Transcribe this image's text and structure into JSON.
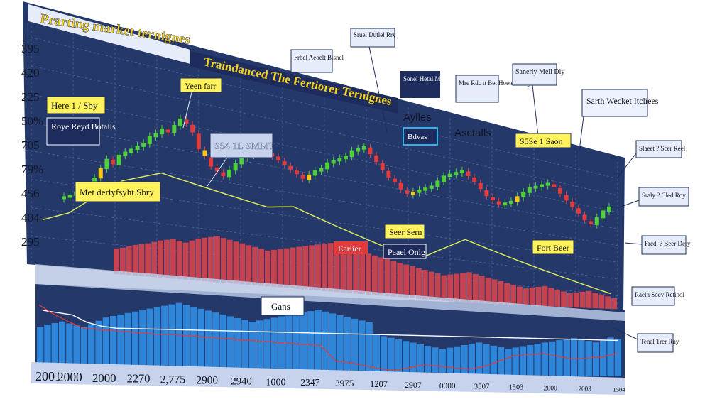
{
  "colors": {
    "panel_bg": "#25386a",
    "panel_bg_light": "#2c4482",
    "grid": "#5b74b0",
    "candle_up": "#4fcf3a",
    "candle_down": "#e23b3b",
    "candle_highlight": "#f5c518",
    "volume_red": "#d2434f",
    "volume_blue": "#2f86d9",
    "trend_line": "#d8e65a",
    "callout_yellow": "#fff25a",
    "callout_dark": "#1d2c5c",
    "callout_white": "#eef2ff",
    "text_dark": "#101522"
  },
  "chart_data": {
    "type": "bar",
    "title": "Prarting market ternignes",
    "subtitle": "Traindanced The Fertiorer Ternignes",
    "y_tick_labels": [
      "395",
      "420",
      "225",
      "50%",
      "705",
      "79%",
      "456",
      "404",
      "295"
    ],
    "x_tick_labels": [
      "2001",
      "2000",
      "2000",
      "2270",
      "2,775",
      "2900",
      "2940",
      "1000",
      "2347",
      "3975",
      "1207",
      "2907",
      "0000",
      "3507",
      "1503",
      "2000",
      "2003",
      "1504"
    ],
    "candle_closes_pct": [
      24,
      25,
      27,
      26,
      30,
      35,
      40,
      45,
      43,
      48,
      50,
      52,
      54,
      56,
      60,
      62,
      65,
      64,
      68,
      72,
      70,
      66,
      58,
      55,
      50,
      48,
      46,
      50,
      54,
      58,
      60,
      62,
      64,
      63,
      62,
      60,
      58,
      56,
      54,
      52,
      55,
      58,
      60,
      64,
      66,
      68,
      70,
      74,
      76,
      78,
      74,
      70,
      66,
      62,
      60,
      56,
      54,
      56,
      58,
      60,
      62,
      66,
      70,
      72,
      74,
      76,
      73,
      70,
      66,
      62,
      60,
      58,
      60,
      62,
      66,
      70,
      74,
      76,
      78,
      80,
      78,
      74,
      70,
      66,
      62,
      58,
      56,
      62,
      68,
      72
    ],
    "volume_red_pct": [
      40,
      42,
      45,
      48,
      50,
      52,
      55,
      58,
      60,
      62,
      60,
      58,
      62,
      66,
      68,
      70,
      72,
      70,
      68,
      66,
      64,
      62,
      60,
      58,
      56,
      58,
      60,
      62,
      64,
      66,
      68,
      70,
      72,
      74,
      76,
      74,
      72,
      70,
      68,
      66,
      64,
      62,
      60,
      58,
      56,
      54,
      52,
      50,
      48,
      46,
      44,
      42,
      40,
      42,
      44,
      46,
      48,
      46,
      44,
      42,
      40,
      38,
      36,
      34,
      32,
      30,
      32,
      34,
      36,
      34,
      32,
      30,
      28,
      30,
      32,
      34,
      32,
      30,
      28,
      26
    ],
    "volume_blue_pct": [
      55,
      58,
      60,
      62,
      60,
      58,
      56,
      60,
      64,
      68,
      70,
      72,
      74,
      76,
      78,
      80,
      82,
      84,
      86,
      88,
      86,
      84,
      82,
      80,
      78,
      76,
      74,
      72,
      70,
      68,
      70,
      72,
      74,
      76,
      78,
      80,
      82,
      84,
      86,
      84,
      82,
      80,
      78,
      76,
      74,
      72,
      56,
      54,
      52,
      50,
      48,
      46,
      44,
      42,
      40,
      38,
      40,
      42,
      44,
      46,
      48,
      46,
      44,
      42,
      40,
      42,
      44,
      46,
      48,
      50,
      52,
      54,
      56,
      58,
      56,
      54,
      52,
      56,
      60,
      58
    ],
    "trend_line_pct": [
      18,
      20,
      22,
      26,
      30,
      34,
      38,
      40,
      42,
      44,
      43,
      42,
      41,
      40,
      39,
      38,
      37,
      36,
      37,
      38,
      36,
      34,
      32,
      30,
      28,
      26,
      24,
      22,
      20,
      22,
      26,
      30,
      34,
      32,
      30,
      28,
      26,
      24,
      22,
      20,
      18,
      16,
      14,
      12
    ],
    "blue_trend_pct": [
      74,
      72,
      70,
      62,
      58,
      56,
      56,
      56,
      56,
      56,
      56,
      56,
      56,
      56,
      56,
      56,
      56,
      56,
      56,
      56,
      56,
      56,
      56,
      56,
      56,
      56,
      56,
      56,
      56,
      56,
      56,
      56,
      56,
      56,
      56,
      56,
      56,
      56,
      56,
      56
    ],
    "red_trend_pct": [
      80,
      70,
      62,
      55,
      54,
      53,
      52,
      51,
      50,
      50,
      49,
      48,
      47,
      46,
      45,
      44,
      43,
      42,
      41,
      40,
      20,
      18,
      14,
      10,
      8,
      12,
      16,
      14,
      12,
      10,
      14,
      22,
      30,
      32,
      34,
      30,
      26,
      28,
      30,
      36
    ]
  },
  "callouts": {
    "yearbar": "Yeen farr",
    "hero": "Here 1 / Sby",
    "roye": "Roye Reyd Botalls",
    "price": "S54 1L SMMT",
    "met": "Met derlyfsyht Sbry",
    "traindanced": "Traindanced The Fertiorer Ternignes",
    "small1": "Sruel Dutlel Rry",
    "small2": "Frbel Aeoelt Bisnel",
    "small3": "Sonel Hetal Mal tes Raol eom",
    "small4": "Mre Rdc tt Bet Hoetel Rdhy",
    "small5": "Sanerly Mell Dly",
    "smith": "Sarth Wecket Itcliees",
    "aylles": "Aylles",
    "asctalls": "Asctalls",
    "bdvas": "Bdvas",
    "s5se": "S5Se 1 Saon",
    "seer": "Seer Sern",
    "paael": "Paael Onlg",
    "earlier": "Earlier",
    "fort": "Fort Beer",
    "gans": "Gans",
    "side1": "Slaeet ? Scer Reel",
    "side2": "Sraly ? Cled Roy",
    "side3": "Frcd. ? Beer Dery",
    "side4": "Raeln Soey Retinol",
    "side5": "Tenal Trer Rny"
  }
}
